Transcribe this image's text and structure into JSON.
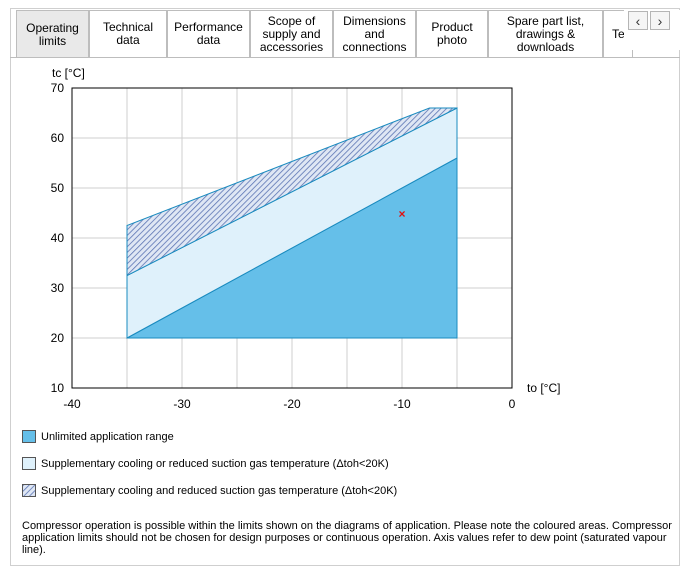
{
  "tabs": [
    {
      "label": "Operating\nlimits",
      "active": true
    },
    {
      "label": "Technical\ndata"
    },
    {
      "label": "Performance\ndata"
    },
    {
      "label": "Scope of\nsupply and\naccessories"
    },
    {
      "label": "Dimensions\nand\nconnections"
    },
    {
      "label": "Product\nphoto"
    },
    {
      "label": "Spare part list,\ndrawings &\ndownloads"
    },
    {
      "label": "Te"
    }
  ],
  "nav": {
    "prev": "‹",
    "next": "›",
    "prev_icon": "chevron-left-icon",
    "next_icon": "chevron-right-icon"
  },
  "chart_data": {
    "type": "area",
    "ylabel": "tc [°C]",
    "xlabel": "to [°C]",
    "xlim": [
      -40,
      0
    ],
    "ylim": [
      10,
      70
    ],
    "xticks": [
      -40,
      -30,
      -20,
      -10,
      0
    ],
    "yticks": [
      10,
      20,
      30,
      40,
      50,
      60,
      70
    ],
    "grid": true,
    "regions": [
      {
        "name": "Unlimited application range",
        "color": "#65bfe9",
        "pattern": "solid",
        "polygon": [
          [
            -35,
            20
          ],
          [
            -5,
            20
          ],
          [
            -5,
            56
          ]
        ]
      },
      {
        "name": "Supplementary cooling or reduced suction gas temperature (Δtoh<20K)",
        "color": "#dff1fb",
        "pattern": "solid",
        "polygon": [
          [
            -35,
            20
          ],
          [
            -5,
            56
          ],
          [
            -5,
            66
          ],
          [
            -35,
            32.5
          ]
        ]
      },
      {
        "name": "Supplementary cooling and reduced suction gas temperature (Δtoh<20K)",
        "color": "#a8bde0",
        "pattern": "hatched",
        "polygon": [
          [
            -35,
            32.5
          ],
          [
            -5,
            66
          ],
          [
            -7.5,
            66
          ],
          [
            -35,
            42.5
          ]
        ]
      }
    ],
    "markers": [
      {
        "x": -10,
        "y": 45,
        "symbol": "×",
        "color": "#e01010"
      }
    ]
  },
  "legend": [
    {
      "label": "Unlimited application range",
      "color": "#65bfe9",
      "pattern": "solid"
    },
    {
      "label": "Supplementary cooling or reduced suction gas temperature (Δtoh<20K)",
      "color": "#dff1fb",
      "pattern": "solid"
    },
    {
      "label": "Supplementary cooling and reduced suction gas temperature (Δtoh<20K)",
      "color": "#a8bde0",
      "pattern": "hatched"
    }
  ],
  "note": "Compressor operation is possible within the limits shown on the diagrams of application. Please note the coloured areas. Compressor application limits should not be chosen for design purposes or continuous operation. Axis values refer to dew point (saturated vapour line)."
}
